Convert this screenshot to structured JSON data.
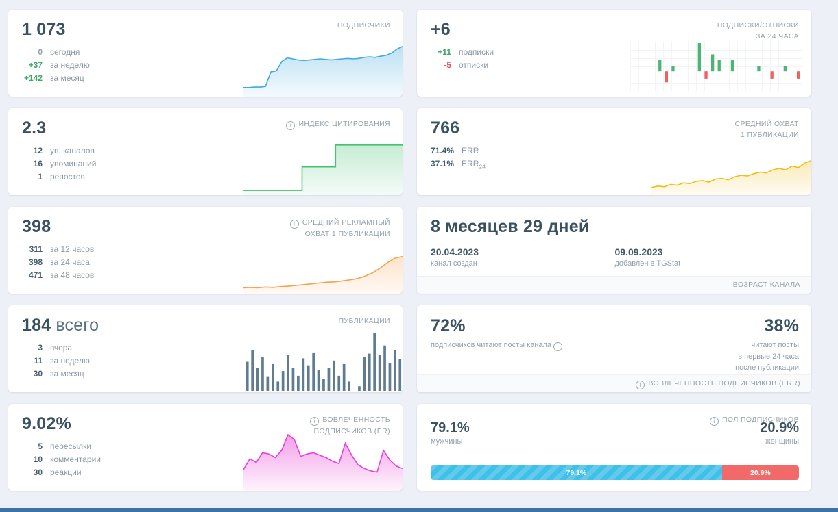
{
  "cards": {
    "subscribers": {
      "value": "1 073",
      "title": "ПОДПИСЧИКИ",
      "rows": [
        {
          "value": "0",
          "label": "сегодня",
          "tone": "muted"
        },
        {
          "value": "+37",
          "label": "за неделю",
          "tone": "green"
        },
        {
          "value": "+142",
          "label": "за месяц",
          "tone": "green"
        }
      ]
    },
    "subsflow": {
      "value": "+6",
      "title": "ПОДПИСКИ/ОТПИСКИ\nЗА 24 ЧАСА",
      "rows": [
        {
          "value": "+11",
          "label": "подписки",
          "tone": "green"
        },
        {
          "value": "-5",
          "label": "отписки",
          "tone": "red"
        }
      ]
    },
    "citation": {
      "value": "2.3",
      "title": "ИНДЕКС ЦИТИРОВАНИЯ",
      "rows": [
        {
          "value": "12",
          "label": "уп. каналов"
        },
        {
          "value": "16",
          "label": "упоминаний"
        },
        {
          "value": "1",
          "label": "репостов"
        }
      ]
    },
    "reach": {
      "value": "766",
      "title": "СРЕДНИЙ ОХВАТ\n1 ПУБЛИКАЦИИ",
      "rows": [
        {
          "value": "71.4%",
          "label": "ERR"
        },
        {
          "value": "37.1%",
          "label": "ERR",
          "label_sub": "24"
        }
      ]
    },
    "adreach": {
      "value": "398",
      "title": "СРЕДНИЙ РЕКЛАМНЫЙ\nОХВАТ 1 ПУБЛИКАЦИИ",
      "rows": [
        {
          "value": "311",
          "label": "за 12 часов"
        },
        {
          "value": "398",
          "label": "за 24 часа"
        },
        {
          "value": "471",
          "label": "за 48 часов"
        }
      ]
    },
    "age": {
      "value": "8 месяцев 29 дней",
      "created_date": "20.04.2023",
      "created_label": "канал создан",
      "added_date": "09.09.2023",
      "added_label": "добавлен в TGStat",
      "footer": "ВОЗРАСТ КАНАЛА"
    },
    "publications": {
      "value": "184",
      "value_suffix": "всего",
      "title": "ПУБЛИКАЦИИ",
      "rows": [
        {
          "value": "3",
          "label": "вчера"
        },
        {
          "value": "11",
          "label": "за неделю"
        },
        {
          "value": "30",
          "label": "за месяц"
        }
      ]
    },
    "err": {
      "left_value": "72%",
      "left_label": "подписчиков читают посты канала",
      "right_value": "38%",
      "right_label": "читают посты\nв первые 24 часа\nпосле публикации",
      "footer": "ВОВЛЕЧЕННОСТЬ ПОДПИСЧИКОВ (ERR)"
    },
    "er": {
      "value": "9.02%",
      "title": "ВОВЛЕЧЕННОСТЬ\nПОДПИСЧИКОВ (ER)",
      "rows": [
        {
          "value": "5",
          "label": "пересылки"
        },
        {
          "value": "10",
          "label": "комментарии"
        },
        {
          "value": "30",
          "label": "реакции"
        }
      ]
    },
    "gender": {
      "title": "ПОЛ ПОДПИСЧИКОВ",
      "male_value": "79.1%",
      "male_label": "мужчины",
      "female_value": "20.9%",
      "female_label": "женщины",
      "male_pct": 79.1,
      "female_pct": 20.9,
      "bar_male_text": "79.1%",
      "bar_female_text": "20.9%",
      "male_color": "#3fc0e8",
      "female_color": "#f2696a"
    }
  },
  "chart_data": {
    "subscribers_spark": {
      "type": "area",
      "color": "#41a9dd",
      "fill_opacity": 0.35,
      "values": [
        16,
        16,
        17,
        17,
        18,
        46,
        48,
        66,
        73,
        71,
        69,
        68,
        69,
        70,
        71,
        70,
        69,
        70,
        71,
        72,
        71,
        72,
        74,
        75,
        74,
        76,
        78,
        82,
        90,
        95
      ]
    },
    "subsflow_bars": {
      "type": "posneg",
      "pos_color": "#4cb573",
      "neg_color": "#ef6060",
      "max": 5,
      "values": [
        0,
        0,
        0,
        0,
        2,
        -3,
        1,
        0,
        0,
        0,
        5,
        -2,
        3,
        2,
        0,
        2,
        0,
        0,
        0,
        1,
        0,
        -2,
        0,
        1,
        0,
        -2
      ]
    },
    "citation_spark": {
      "type": "step",
      "color": "#43c272",
      "fill_opacity": 0.3,
      "values": [
        7,
        7,
        7,
        7,
        7,
        7,
        7,
        48,
        48,
        48,
        48,
        86,
        86,
        86,
        86,
        86,
        86,
        86,
        86,
        84
      ]
    },
    "reach_spark": {
      "type": "area",
      "color": "#f0bd13",
      "fill_opacity": 0.3,
      "values": [
        18,
        22,
        20,
        26,
        24,
        30,
        28,
        34,
        36,
        32,
        40,
        42,
        38,
        46,
        50,
        48,
        54,
        58,
        56,
        64,
        68,
        64,
        74,
        70,
        82,
        88
      ]
    },
    "adreach_spark": {
      "type": "area",
      "color": "#f6a04c",
      "fill_opacity": 0.3,
      "values": [
        13,
        14,
        13,
        15,
        14,
        16,
        17,
        19,
        21,
        23,
        25,
        27,
        28,
        30,
        33,
        36,
        42,
        50,
        62,
        76,
        88,
        92
      ]
    },
    "publications_bars": {
      "type": "bars",
      "color": "#5f7c92",
      "values": [
        50,
        70,
        40,
        58,
        24,
        46,
        16,
        34,
        62,
        40,
        26,
        56,
        44,
        66,
        36,
        20,
        40,
        52,
        26,
        46,
        16,
        0,
        8,
        58,
        64,
        100,
        62,
        78,
        48,
        70,
        55
      ]
    },
    "er_spark": {
      "type": "area",
      "color": "#e93fd4",
      "fill_opacity": 0.5,
      "values": [
        34,
        52,
        46,
        62,
        60,
        54,
        66,
        92,
        84,
        56,
        60,
        62,
        58,
        54,
        48,
        44,
        78,
        58,
        42,
        36,
        32,
        30,
        66,
        50,
        40,
        36
      ]
    }
  }
}
